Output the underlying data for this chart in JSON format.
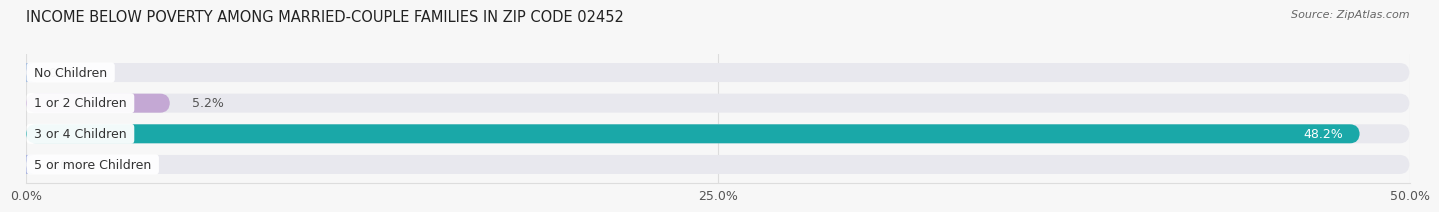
{
  "title": "INCOME BELOW POVERTY AMONG MARRIED-COUPLE FAMILIES IN ZIP CODE 02452",
  "source": "Source: ZipAtlas.com",
  "categories": [
    "No Children",
    "1 or 2 Children",
    "3 or 4 Children",
    "5 or more Children"
  ],
  "values": [
    0.0,
    5.2,
    48.2,
    0.0
  ],
  "bar_colors": [
    "#a8bfe0",
    "#c4a8d4",
    "#1aa8a8",
    "#aab4e0"
  ],
  "bar_bg_color": "#e8e8ee",
  "label_bg_colors": [
    "#a8bfe0",
    "#c4a8d4",
    "#1aa8a8",
    "#aab4e0"
  ],
  "xlim": [
    0,
    50
  ],
  "xticks": [
    0.0,
    25.0,
    50.0
  ],
  "xtick_labels": [
    "0.0%",
    "25.0%",
    "50.0%"
  ],
  "title_fontsize": 10.5,
  "source_fontsize": 8,
  "label_fontsize": 9,
  "value_fontsize": 9,
  "bar_height": 0.62,
  "background_color": "#f7f7f7",
  "grid_color": "#dddddd",
  "value_color_dark": "#555555",
  "value_color_light": "#ffffff"
}
